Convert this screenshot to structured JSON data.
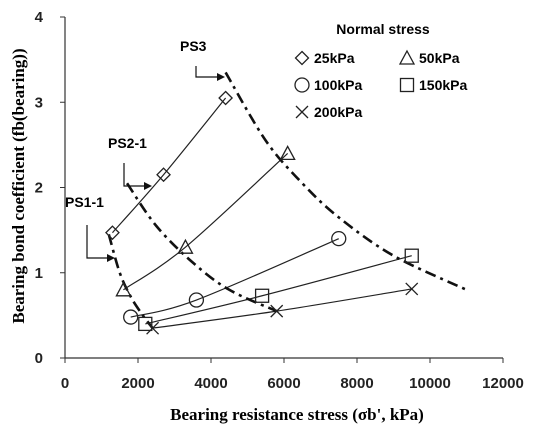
{
  "chart_data": {
    "type": "scatter",
    "xlabel": "Bearing resistance stress (σb', kPa)",
    "ylabel": "Bearing bond coefficient (fb(bearing))",
    "xlim": [
      0,
      12000
    ],
    "ylim": [
      0,
      4
    ],
    "xticks": [
      "0",
      "2000",
      "4000",
      "6000",
      "8000",
      "10000",
      "12000"
    ],
    "yticks": [
      "0",
      "1",
      "2",
      "3",
      "4"
    ],
    "grid": false,
    "legend": {
      "title": "Normal stress",
      "placement": "top-right"
    },
    "series": [
      {
        "name": "25kPa",
        "marker": "diamond",
        "x": [
          1300,
          2700,
          4400
        ],
        "y": [
          1.47,
          2.15,
          3.05
        ]
      },
      {
        "name": "50kPa",
        "marker": "triangle",
        "x": [
          1600,
          3300,
          6100
        ],
        "y": [
          0.8,
          1.3,
          2.4
        ]
      },
      {
        "name": "100kPa",
        "marker": "circle",
        "x": [
          1800,
          3600,
          7500
        ],
        "y": [
          0.48,
          0.68,
          1.4
        ]
      },
      {
        "name": "150kPa",
        "marker": "square",
        "x": [
          2200,
          5400,
          9500
        ],
        "y": [
          0.4,
          0.73,
          1.2
        ]
      },
      {
        "name": "200kPa",
        "marker": "x",
        "x": [
          2400,
          5800,
          9500
        ],
        "y": [
          0.35,
          0.55,
          0.81
        ]
      }
    ],
    "boundary_curves": [
      {
        "label": "PS1-1",
        "style": "dash-dot",
        "x": [
          1200,
          1500,
          1800,
          2100,
          2400
        ],
        "y": [
          1.45,
          1.0,
          0.72,
          0.52,
          0.35
        ]
      },
      {
        "label": "PS2-1",
        "style": "dash-dot",
        "x": [
          1700,
          2500,
          3500,
          4500,
          5800
        ],
        "y": [
          2.05,
          1.55,
          1.12,
          0.8,
          0.55
        ]
      },
      {
        "label": "PS3",
        "style": "dash-dot",
        "x": [
          4400,
          5500,
          6500,
          7500,
          9000,
          11000
        ],
        "y": [
          3.35,
          2.55,
          2.05,
          1.65,
          1.2,
          0.8
        ]
      }
    ]
  }
}
